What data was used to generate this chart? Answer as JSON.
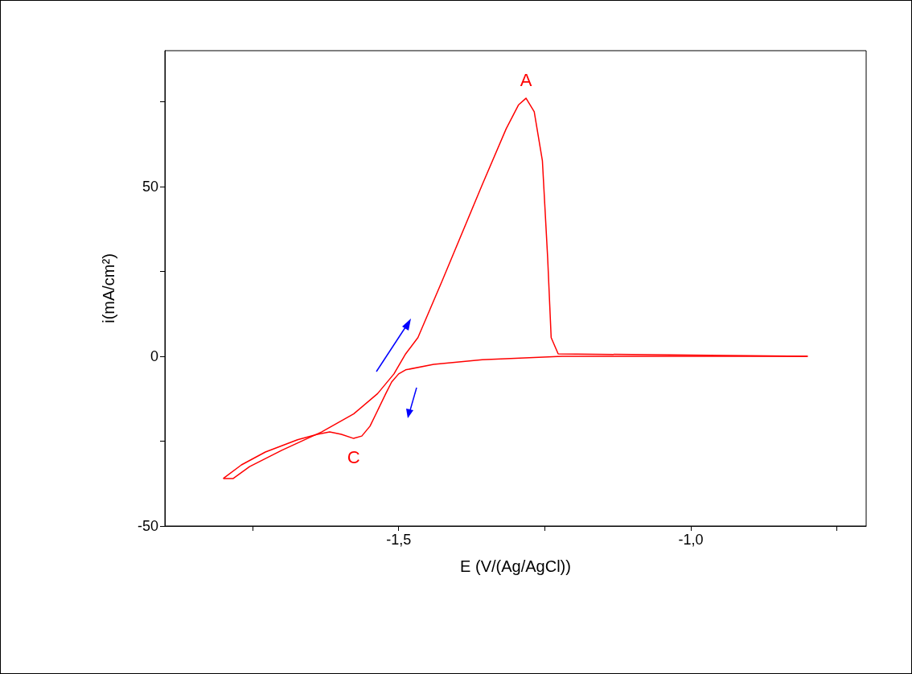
{
  "chart_data": {
    "type": "line",
    "xlabel": "E (V/(Ag/AgCl))",
    "ylabel": "i(mA/cm²)",
    "marker": "none",
    "line_style": "solid",
    "grid": false,
    "series": [
      {
        "color": "#ff0000",
        "x": [
          -0.8,
          -1.22,
          -1.357,
          -1.44,
          -1.488,
          -1.5,
          -1.512,
          -1.522,
          -1.536,
          -1.549,
          -1.563,
          -1.577,
          -1.598,
          -1.618,
          -1.639,
          -1.673,
          -1.728,
          -1.769,
          -1.8
        ],
        "values": [
          0,
          0,
          -1,
          -2.4,
          -4,
          -5.2,
          -7.6,
          -11,
          -16,
          -20.6,
          -23.5,
          -24.2,
          -23,
          -22.3,
          -23,
          -24.6,
          -28.2,
          -32,
          -36
        ]
      },
      {
        "color": "#ff0000",
        "x": [
          -1.8,
          -1.783,
          -1.755,
          -1.7,
          -1.632,
          -1.577,
          -1.536,
          -1.508,
          -1.488,
          -1.467,
          -1.426,
          -1.357,
          -1.316,
          -1.295,
          -1.282,
          -1.268,
          -1.254,
          -1.245,
          -1.239,
          -1.227,
          -0.8
        ],
        "values": [
          -36,
          -36,
          -32.5,
          -27.7,
          -22.3,
          -17,
          -11,
          -5.2,
          0.7,
          5.5,
          22,
          50.5,
          67,
          74,
          76,
          72,
          57.6,
          29,
          5.5,
          0.7,
          0
        ]
      }
    ],
    "xlim": [
      -1.9,
      -0.7
    ],
    "xticks": [
      {
        "value": -1.75,
        "label": null
      },
      {
        "value": -1.5,
        "label": "-1,5"
      },
      {
        "value": -1.25,
        "label": null
      },
      {
        "value": -1.0,
        "label": "-1,0"
      },
      {
        "value": -0.75,
        "label": null
      }
    ],
    "ylim": [
      -50,
      90
    ],
    "yticks": [
      -50,
      {
        "value": -25,
        "label": null
      },
      0,
      {
        "value": 25,
        "label": null
      },
      50,
      {
        "value": 75,
        "label": null
      }
    ],
    "annotations": [
      {
        "text": "A",
        "x": -1.282,
        "y": 76
      },
      {
        "text": "C",
        "x": -1.577,
        "y": -24.2
      }
    ]
  }
}
